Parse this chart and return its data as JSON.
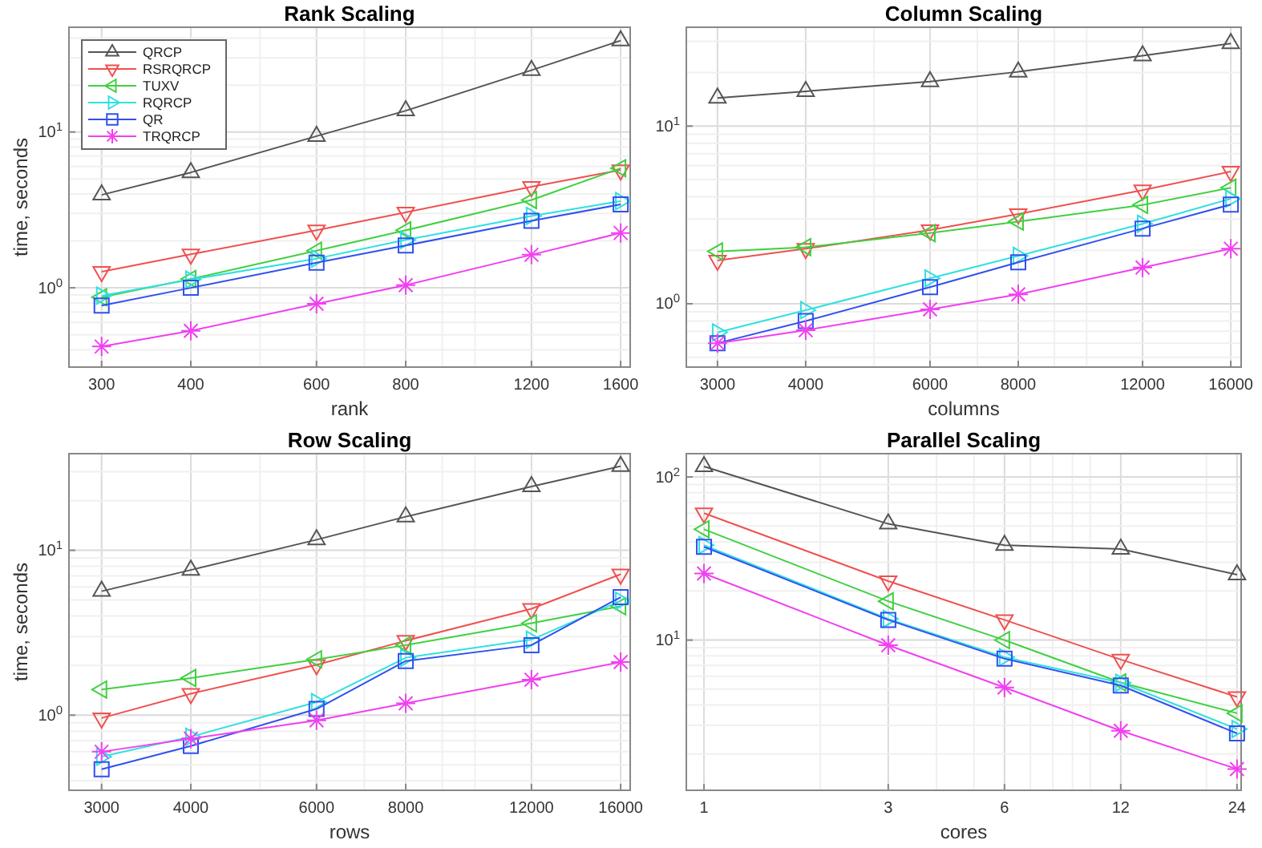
{
  "chart_data": [
    {
      "type": "line",
      "title": "Rank Scaling",
      "xlabel": "rank",
      "ylabel": "time, seconds",
      "log": "xy",
      "grid": true,
      "legend": "top left",
      "x": [
        300,
        400,
        600,
        800,
        1200,
        1600
      ],
      "xlim": [
        270,
        1650
      ],
      "ylim": [
        0.31,
        47
      ],
      "xticks": [
        300,
        400,
        600,
        800,
        1200,
        1600
      ],
      "yticks": [
        {
          "value": 1,
          "label": "10$^{0}$"
        },
        {
          "value": 10,
          "label": "10$^{1}$"
        }
      ],
      "series": [
        {
          "name": "QRCP",
          "color": "#555555",
          "marker": "triangle-up",
          "values": [
            3.95,
            5.5,
            9.4,
            13.7,
            24.9,
            38.6
          ]
        },
        {
          "name": "RSRQRCP",
          "color": "#f05050",
          "marker": "triangle-down",
          "values": [
            1.27,
            1.64,
            2.34,
            3.05,
            4.45,
            5.7
          ]
        },
        {
          "name": "TUXV",
          "color": "#40d040",
          "marker": "triangle-left",
          "values": [
            0.87,
            1.14,
            1.73,
            2.34,
            3.66,
            5.85
          ]
        },
        {
          "name": "RQRCP",
          "color": "#30e0e0",
          "marker": "triangle-right",
          "values": [
            0.89,
            1.13,
            1.54,
            2.03,
            2.89,
            3.6
          ]
        },
        {
          "name": "QR",
          "color": "#3050f0",
          "marker": "square",
          "values": [
            0.77,
            1.0,
            1.45,
            1.87,
            2.69,
            3.43
          ]
        },
        {
          "name": "TRQRCP",
          "color": "#f040f0",
          "marker": "cross",
          "values": [
            0.42,
            0.53,
            0.79,
            1.04,
            1.63,
            2.25
          ]
        }
      ]
    },
    {
      "type": "line",
      "title": "Column Scaling",
      "xlabel": "columns",
      "log": "xy",
      "grid": true,
      "x": [
        3000,
        4000,
        6000,
        8000,
        12000,
        16000
      ],
      "xlim": [
        2710,
        16550
      ],
      "ylim": [
        0.44,
        36
      ],
      "xticks": [
        3000,
        4000,
        6000,
        8000,
        12000,
        16000
      ],
      "yticks": [
        {
          "value": 1,
          "label": "10$^{0}$"
        },
        {
          "value": 10,
          "label": "10$^{1}$"
        }
      ],
      "series": [
        {
          "color": "#555555",
          "marker": "triangle-up",
          "values": [
            14.4,
            15.7,
            17.8,
            20.2,
            24.9,
            29.2
          ]
        },
        {
          "color": "#f05050",
          "marker": "triangle-down",
          "values": [
            1.75,
            2.04,
            2.6,
            3.2,
            4.36,
            5.55
          ]
        },
        {
          "color": "#40d040",
          "marker": "triangle-left",
          "values": [
            1.97,
            2.08,
            2.5,
            2.9,
            3.6,
            4.5
          ]
        },
        {
          "color": "#30e0e0",
          "marker": "triangle-right",
          "values": [
            0.69,
            0.92,
            1.39,
            1.86,
            2.82,
            3.9
          ]
        },
        {
          "color": "#3050f0",
          "marker": "square",
          "values": [
            0.6,
            0.8,
            1.24,
            1.71,
            2.65,
            3.62
          ]
        },
        {
          "color": "#f040f0",
          "marker": "cross",
          "values": [
            0.6,
            0.71,
            0.93,
            1.13,
            1.6,
            2.04
          ]
        }
      ]
    },
    {
      "type": "line",
      "title": "Row Scaling",
      "xlabel": "rows",
      "ylabel": "time, seconds",
      "log": "xy",
      "grid": true,
      "x": [
        3000,
        4000,
        6000,
        8000,
        12000,
        16000
      ],
      "xlim": [
        2700,
        16500
      ],
      "ylim": [
        0.35,
        38.6
      ],
      "xticks": [
        3000,
        4000,
        6000,
        8000,
        12000,
        16000
      ],
      "yticks": [
        {
          "value": 1,
          "label": "10$^{0}$"
        },
        {
          "value": 10,
          "label": "10$^{1}$"
        }
      ],
      "series": [
        {
          "color": "#555555",
          "marker": "triangle-up",
          "values": [
            5.65,
            7.6,
            11.6,
            16.0,
            24.4,
            32.4
          ]
        },
        {
          "color": "#f05050",
          "marker": "triangle-down",
          "values": [
            0.96,
            1.35,
            2.02,
            2.83,
            4.42,
            7.16
          ]
        },
        {
          "color": "#40d040",
          "marker": "triangle-left",
          "values": [
            1.43,
            1.68,
            2.18,
            2.66,
            3.61,
            4.58
          ]
        },
        {
          "color": "#30e0e0",
          "marker": "triangle-right",
          "values": [
            0.56,
            0.74,
            1.2,
            2.23,
            2.87,
            4.94
          ]
        },
        {
          "color": "#3050f0",
          "marker": "square",
          "values": [
            0.47,
            0.65,
            1.09,
            2.13,
            2.66,
            5.2
          ]
        },
        {
          "color": "#f040f0",
          "marker": "cross",
          "values": [
            0.6,
            0.72,
            0.93,
            1.18,
            1.64,
            2.1
          ]
        }
      ]
    },
    {
      "type": "line",
      "title": "Parallel Scaling",
      "xlabel": "cores",
      "log": "xy",
      "grid": true,
      "x": [
        1,
        3,
        6,
        12,
        24
      ],
      "xlim": [
        0.9,
        24.6
      ],
      "ylim": [
        1.2,
        139
      ],
      "xticks": [
        1,
        3,
        6,
        12,
        24
      ],
      "yticks": [
        {
          "value": 10,
          "label": "10$^{1}$"
        },
        {
          "value": 100,
          "label": "10$^{2}$"
        }
      ],
      "series": [
        {
          "color": "#555555",
          "marker": "triangle-up",
          "values": [
            116,
            51.6,
            38.2,
            36.2,
            25.2
          ]
        },
        {
          "color": "#f05050",
          "marker": "triangle-down",
          "values": [
            60,
            23.0,
            13.3,
            7.6,
            4.48
          ]
        },
        {
          "color": "#40d040",
          "marker": "triangle-left",
          "values": [
            47.8,
            17.3,
            10,
            5.5,
            3.56
          ]
        },
        {
          "color": "#30e0e0",
          "marker": "triangle-right",
          "values": [
            38.2,
            13.5,
            7.86,
            5.48,
            2.85
          ]
        },
        {
          "color": "#3050f0",
          "marker": "square",
          "values": [
            37.3,
            13.3,
            7.69,
            5.27,
            2.68
          ]
        },
        {
          "color": "#f040f0",
          "marker": "cross",
          "values": [
            25.6,
            9.3,
            5.12,
            2.78,
            1.62
          ]
        }
      ]
    }
  ]
}
